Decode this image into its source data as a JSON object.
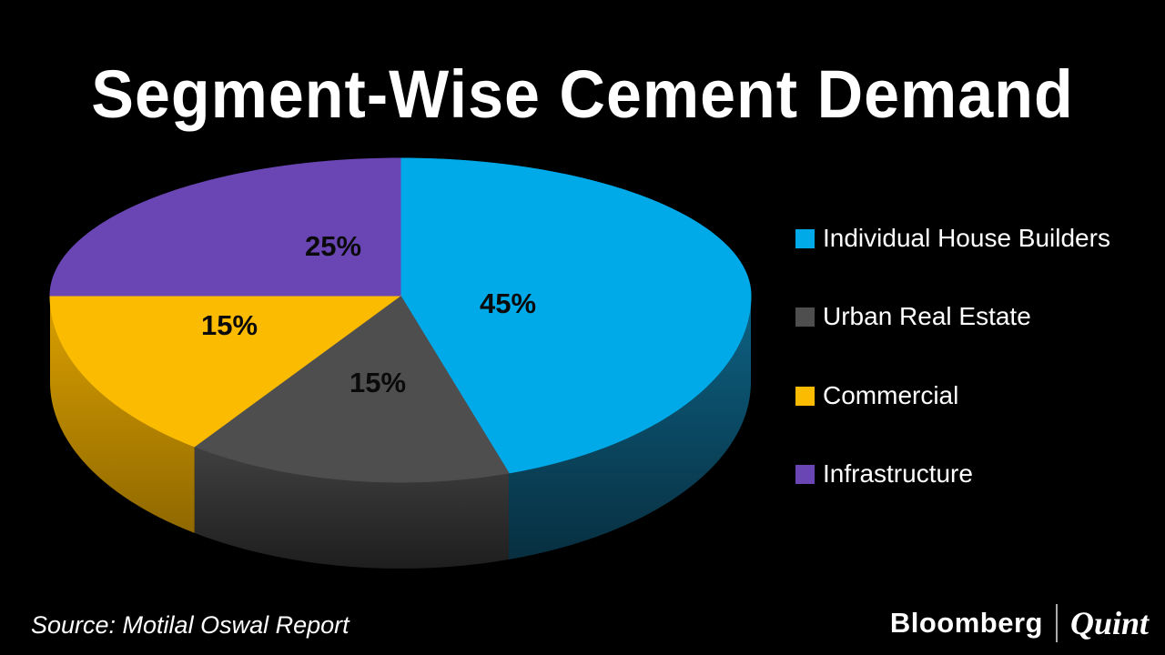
{
  "chart_data": {
    "type": "pie",
    "effect": "3d",
    "title": "Segment-Wise Cement Demand",
    "unit": "%",
    "start_angle_deg": 0,
    "direction": "clockwise",
    "legend_position": "right",
    "background_color": "#000000",
    "series": [
      {
        "label": "Individual House Builders",
        "value": 45,
        "color": "#00AAE8",
        "side_top": "#0D6284",
        "side_bottom": "#082F40"
      },
      {
        "label": "Urban Real Estate",
        "value": 15,
        "color": "#4E4E4E",
        "side_top": "#404040",
        "side_bottom": "#1E1E1E"
      },
      {
        "label": "Commercial",
        "value": 15,
        "color": "#FBBB00",
        "side_top": "#DCA100",
        "side_bottom": "#8F6800"
      },
      {
        "label": "Infrastructure",
        "value": 25,
        "color": "#6A46B4"
      }
    ],
    "data_labels": [
      "45%",
      "15%",
      "15%",
      "25%"
    ]
  },
  "footer": {
    "source": "Source: Motilal Oswal Report",
    "brand_primary": "Bloomberg",
    "brand_secondary": "Quint"
  }
}
